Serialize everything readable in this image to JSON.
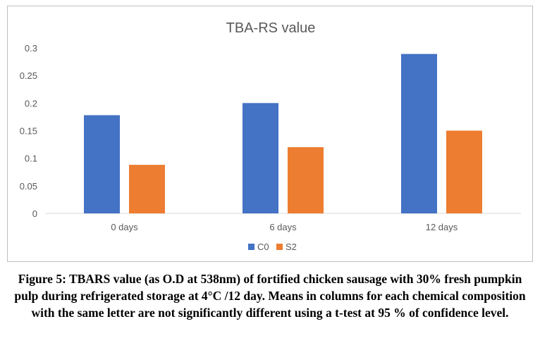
{
  "chart_data": {
    "type": "bar",
    "title": "TBA-RS value",
    "categories": [
      "0 days",
      "6 days",
      "12 days"
    ],
    "series": [
      {
        "name": "C0",
        "color": "#4472C4",
        "values": [
          0.178,
          0.2,
          0.289
        ]
      },
      {
        "name": "S2",
        "color": "#ED7D31",
        "values": [
          0.088,
          0.12,
          0.15
        ]
      }
    ],
    "ylim": [
      0,
      0.3
    ],
    "yticks": [
      "0",
      "0.05",
      "0.1",
      "0.15",
      "0.2",
      "0.25",
      "0.3"
    ],
    "xlabel": "",
    "ylabel": "",
    "grid": false,
    "legend": "bottom-center"
  },
  "caption": "Figure 5: TBARS value (as O.D at 538nm) of fortified chicken sausage with 30% fresh pumpkin pulp during refrigerated storage at 4°C /12 day. Means in columns for each chemical composition with the same letter are not significantly different using a t-test at 95 % of confidence level."
}
